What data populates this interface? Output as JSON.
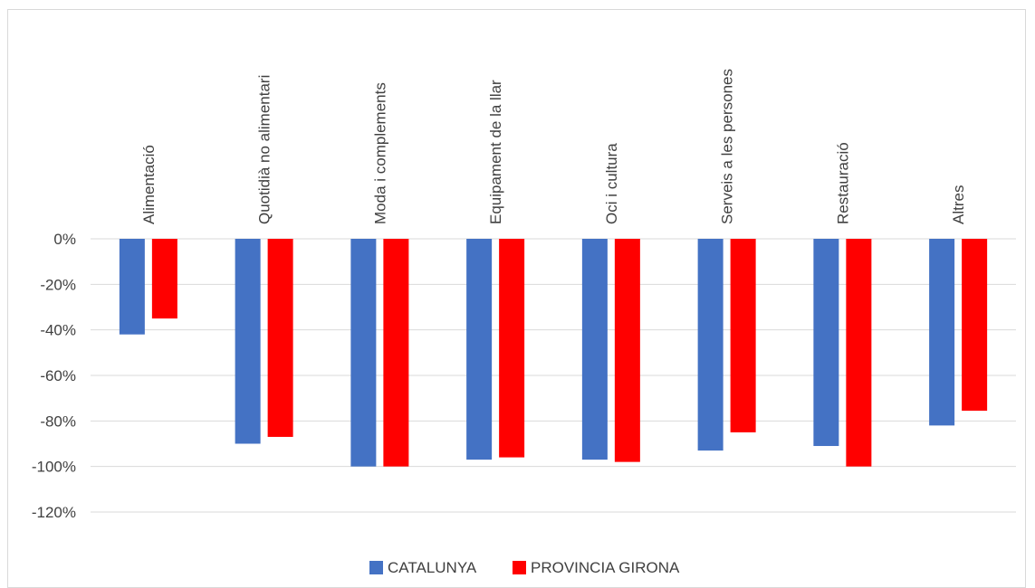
{
  "chart_data": {
    "type": "bar",
    "categories": [
      "Alimentació",
      "Quotidià no alimentari",
      "Moda i complements",
      "Equipament de la llar",
      "Oci i cultura",
      "Serveis a les persones",
      "Restauració",
      "Altres"
    ],
    "series": [
      {
        "name": "CATALUNYA",
        "color": "#4472c4",
        "values": [
          -42,
          -90,
          -100,
          -97,
          -97,
          -93,
          -91,
          -82
        ]
      },
      {
        "name": "PROVINCIA GIRONA",
        "color": "#ff0000",
        "values": [
          -35,
          -87,
          -100,
          -96,
          -98,
          -85,
          -100,
          -75.5
        ]
      }
    ],
    "y_ticks": [
      "0%",
      "-20%",
      "-40%",
      "-60%",
      "-80%",
      "-100%",
      "-120%"
    ],
    "ylim": [
      -120,
      0
    ],
    "grid": true,
    "legend_position": "bottom"
  }
}
